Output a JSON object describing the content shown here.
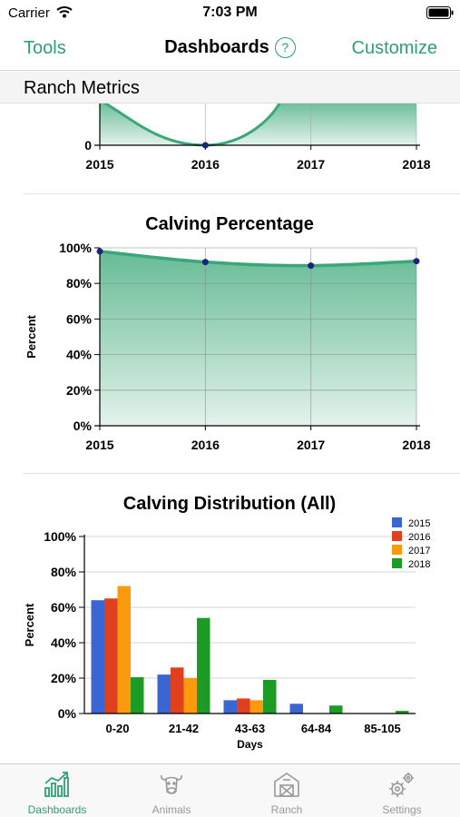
{
  "status_bar": {
    "carrier": "Carrier",
    "time": "7:03 PM"
  },
  "nav": {
    "left": "Tools",
    "title": "Dashboards",
    "help": "?",
    "right": "Customize"
  },
  "section": {
    "title": "Ranch Metrics"
  },
  "colors": {
    "accent": "#2f9e74",
    "s2015": "#3a66d4",
    "s2016": "#e1401f",
    "s2017": "#fb9a0c",
    "s2018": "#1c9b25"
  },
  "chart_data": [
    {
      "type": "area",
      "title": "",
      "categories": [
        "2015",
        "2016",
        "2017",
        "2018"
      ],
      "y_axis_ticks": [
        "0"
      ],
      "values": [
        null,
        0,
        null,
        null
      ],
      "note_partial": "top of chart scrolled out of view"
    },
    {
      "type": "area",
      "title": "Calving Percentage",
      "ylabel": "Percent",
      "ylim": [
        0,
        100
      ],
      "y_ticks": [
        "0%",
        "20%",
        "40%",
        "60%",
        "80%",
        "100%"
      ],
      "categories": [
        "2015",
        "2016",
        "2017",
        "2018"
      ],
      "values": [
        98,
        92,
        90,
        92.5
      ]
    },
    {
      "type": "bar",
      "title": "Calving Distribution (All)",
      "ylabel": "Percent",
      "xlabel": "Days",
      "ylim": [
        0,
        100
      ],
      "y_ticks": [
        "0%",
        "20%",
        "40%",
        "60%",
        "80%",
        "100%"
      ],
      "categories": [
        "0-20",
        "21-42",
        "43-63",
        "64-84",
        "85-105"
      ],
      "legend_position": "top-right",
      "series": [
        {
          "name": "2015",
          "color": "#3a66d4",
          "values": [
            64,
            22,
            7.5,
            5.5,
            0
          ]
        },
        {
          "name": "2016",
          "color": "#e1401f",
          "values": [
            65,
            26,
            8.5,
            0,
            0
          ]
        },
        {
          "name": "2017",
          "color": "#fb9a0c",
          "values": [
            72,
            20,
            7.5,
            0,
            0
          ]
        },
        {
          "name": "2018",
          "color": "#1c9b25",
          "values": [
            20.5,
            54,
            19,
            4.5,
            1.5
          ]
        }
      ]
    }
  ],
  "tabs": [
    {
      "label": "Dashboards",
      "icon": "chart-icon",
      "active": true
    },
    {
      "label": "Animals",
      "icon": "cow-icon",
      "active": false
    },
    {
      "label": "Ranch",
      "icon": "barn-icon",
      "active": false
    },
    {
      "label": "Settings",
      "icon": "gears-icon",
      "active": false
    }
  ]
}
